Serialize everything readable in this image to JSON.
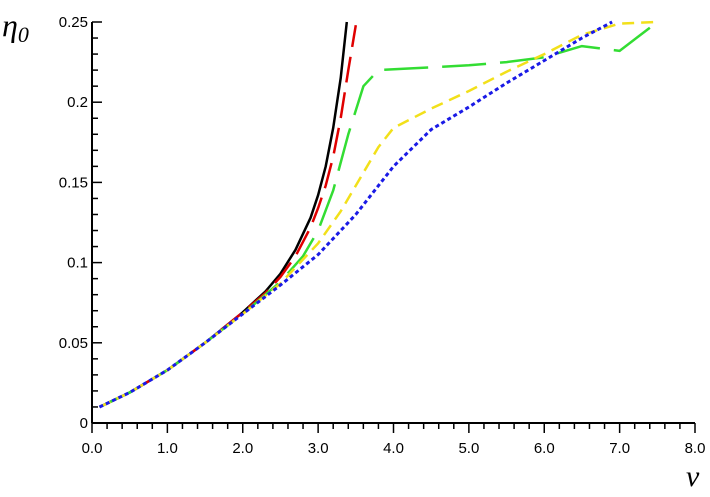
{
  "chart_data": {
    "type": "line",
    "title": "",
    "xlabel": "ν",
    "ylabel": "η",
    "ylabel_subscript": "0",
    "xlim": [
      0,
      8
    ],
    "ylim": [
      0,
      0.25
    ],
    "grid": false,
    "legend": "none",
    "x_ticks": [
      0.0,
      1.0,
      2.0,
      3.0,
      4.0,
      5.0,
      6.0,
      7.0,
      8.0
    ],
    "x_tick_labels": [
      "0.0",
      "1.0",
      "2.0",
      "3.0",
      "4.0",
      "5.0",
      "6.0",
      "7.0",
      "8.0"
    ],
    "y_ticks": [
      0,
      0.05,
      0.1,
      0.15,
      0.2,
      0.25
    ],
    "y_tick_labels": [
      "0",
      "0.05",
      "0.1",
      "0.15",
      "0.2",
      "0.25"
    ],
    "series": [
      {
        "color": "#000000",
        "style": "solid",
        "x": [
          0.1,
          0.5,
          1.0,
          1.5,
          2.0,
          2.3,
          2.5,
          2.7,
          2.9,
          3.0,
          3.1,
          3.2,
          3.3,
          3.38
        ],
        "y": [
          0.01,
          0.019,
          0.033,
          0.05,
          0.069,
          0.082,
          0.093,
          0.108,
          0.128,
          0.142,
          0.16,
          0.184,
          0.215,
          0.25
        ]
      },
      {
        "color": "#e00000",
        "style": "long-dash",
        "x": [
          0.1,
          0.5,
          1.0,
          1.5,
          2.0,
          2.3,
          2.5,
          2.7,
          2.9,
          3.0,
          3.1,
          3.2,
          3.3,
          3.4,
          3.5
        ],
        "y": [
          0.01,
          0.019,
          0.033,
          0.05,
          0.069,
          0.081,
          0.091,
          0.104,
          0.122,
          0.134,
          0.148,
          0.166,
          0.19,
          0.22,
          0.248
        ]
      },
      {
        "color": "#33dd33",
        "style": "extra-long-dash",
        "x": [
          0.1,
          0.5,
          1.0,
          1.5,
          2.0,
          2.5,
          2.8,
          3.0,
          3.2,
          3.4,
          3.6,
          3.8,
          4.2,
          5.0,
          5.5,
          6.0,
          6.5,
          7.0,
          7.5
        ],
        "y": [
          0.01,
          0.019,
          0.033,
          0.05,
          0.068,
          0.088,
          0.104,
          0.12,
          0.145,
          0.18,
          0.21,
          0.22,
          0.221,
          0.223,
          0.225,
          0.228,
          0.235,
          0.232,
          0.25
        ]
      },
      {
        "color": "#f2e01a",
        "style": "dash",
        "x": [
          0.1,
          0.5,
          1.0,
          1.5,
          2.0,
          2.5,
          3.0,
          3.3,
          3.5,
          3.8,
          4.0,
          4.5,
          5.0,
          5.5,
          6.0,
          6.5,
          7.0,
          7.5
        ],
        "y": [
          0.01,
          0.019,
          0.033,
          0.05,
          0.068,
          0.087,
          0.112,
          0.132,
          0.148,
          0.172,
          0.184,
          0.196,
          0.207,
          0.219,
          0.23,
          0.242,
          0.249,
          0.25
        ]
      },
      {
        "color": "#1a1ae6",
        "style": "dot",
        "x": [
          0.1,
          0.5,
          1.0,
          1.5,
          2.0,
          2.5,
          3.0,
          3.5,
          4.0,
          4.5,
          5.0,
          5.5,
          6.0,
          6.5,
          6.9
        ],
        "y": [
          0.01,
          0.019,
          0.033,
          0.05,
          0.068,
          0.086,
          0.105,
          0.13,
          0.16,
          0.183,
          0.197,
          0.212,
          0.226,
          0.24,
          0.25
        ]
      }
    ]
  }
}
